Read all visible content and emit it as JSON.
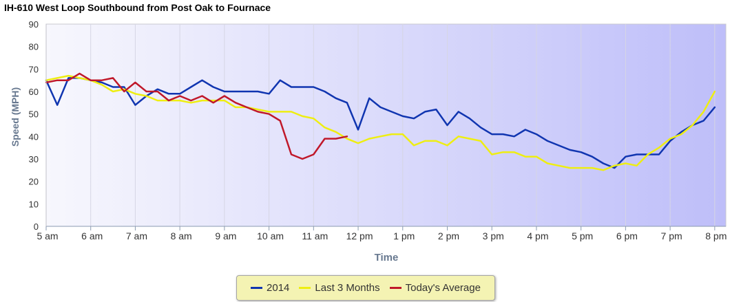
{
  "chart_data": {
    "type": "line",
    "title": "IH-610 West Loop Southbound from Post Oak to Fournace",
    "xlabel": "Time",
    "ylabel": "Speed (MPH)",
    "ylim": [
      0,
      90
    ],
    "yticks": [
      0,
      10,
      20,
      30,
      40,
      50,
      60,
      70,
      80,
      90
    ],
    "x_unit": "hours",
    "xlim": [
      5,
      20.25
    ],
    "x_ticks": [
      5,
      6,
      7,
      8,
      9,
      10,
      11,
      12,
      13,
      14,
      15,
      16,
      17,
      18,
      19,
      20
    ],
    "x_tick_labels": [
      "5 am",
      "6 am",
      "7 am",
      "8 am",
      "9 am",
      "10 am",
      "11 am",
      "12 pm",
      "1 pm",
      "2 pm",
      "3 pm",
      "4 pm",
      "5 pm",
      "6 pm",
      "7 pm",
      "8 pm"
    ],
    "grid": "vertical",
    "legend_position": "bottom",
    "series": [
      {
        "name": "2014",
        "color": "#1035b0",
        "points": [
          [
            5,
            65
          ],
          [
            5.25,
            54
          ],
          [
            5.5,
            66
          ],
          [
            5.75,
            66
          ],
          [
            6,
            65
          ],
          [
            6.25,
            64
          ],
          [
            6.5,
            62
          ],
          [
            6.75,
            62
          ],
          [
            7,
            54
          ],
          [
            7.25,
            58
          ],
          [
            7.5,
            61
          ],
          [
            7.75,
            59
          ],
          [
            8,
            59
          ],
          [
            8.25,
            62
          ],
          [
            8.5,
            65
          ],
          [
            8.75,
            62
          ],
          [
            9,
            60
          ],
          [
            9.25,
            60
          ],
          [
            9.5,
            60
          ],
          [
            9.75,
            60
          ],
          [
            10,
            59
          ],
          [
            10.25,
            65
          ],
          [
            10.5,
            62
          ],
          [
            10.75,
            62
          ],
          [
            11,
            62
          ],
          [
            11.25,
            60
          ],
          [
            11.5,
            57
          ],
          [
            11.75,
            55
          ],
          [
            12,
            43
          ],
          [
            12.25,
            57
          ],
          [
            12.5,
            53
          ],
          [
            12.75,
            51
          ],
          [
            13,
            49
          ],
          [
            13.25,
            48
          ],
          [
            13.5,
            51
          ],
          [
            13.75,
            52
          ],
          [
            14,
            45
          ],
          [
            14.25,
            51
          ],
          [
            14.5,
            48
          ],
          [
            14.75,
            44
          ],
          [
            15,
            41
          ],
          [
            15.25,
            41
          ],
          [
            15.5,
            40
          ],
          [
            15.75,
            43
          ],
          [
            16,
            41
          ],
          [
            16.25,
            38
          ],
          [
            16.5,
            36
          ],
          [
            16.75,
            34
          ],
          [
            17,
            33
          ],
          [
            17.25,
            31
          ],
          [
            17.5,
            28
          ],
          [
            17.75,
            26
          ],
          [
            18,
            31
          ],
          [
            18.25,
            32
          ],
          [
            18.5,
            32
          ],
          [
            18.75,
            32
          ],
          [
            19,
            38
          ],
          [
            19.25,
            42
          ],
          [
            19.5,
            45
          ],
          [
            19.75,
            47
          ],
          [
            20,
            53
          ]
        ]
      },
      {
        "name": "Last 3 Months",
        "color": "#eeee11",
        "points": [
          [
            5,
            65
          ],
          [
            5.25,
            66
          ],
          [
            5.5,
            67
          ],
          [
            5.75,
            66
          ],
          [
            6,
            65
          ],
          [
            6.25,
            63
          ],
          [
            6.5,
            60
          ],
          [
            6.75,
            61
          ],
          [
            7,
            59
          ],
          [
            7.25,
            58
          ],
          [
            7.5,
            56
          ],
          [
            7.75,
            56
          ],
          [
            8,
            56
          ],
          [
            8.25,
            55
          ],
          [
            8.5,
            56
          ],
          [
            8.75,
            56
          ],
          [
            9,
            56
          ],
          [
            9.25,
            53
          ],
          [
            9.5,
            53
          ],
          [
            9.75,
            52
          ],
          [
            10,
            51
          ],
          [
            10.25,
            51
          ],
          [
            10.5,
            51
          ],
          [
            10.75,
            49
          ],
          [
            11,
            48
          ],
          [
            11.25,
            44
          ],
          [
            11.5,
            42
          ],
          [
            11.75,
            39
          ],
          [
            12,
            37
          ],
          [
            12.25,
            39
          ],
          [
            12.5,
            40
          ],
          [
            12.75,
            41
          ],
          [
            13,
            41
          ],
          [
            13.25,
            36
          ],
          [
            13.5,
            38
          ],
          [
            13.75,
            38
          ],
          [
            14,
            36
          ],
          [
            14.25,
            40
          ],
          [
            14.5,
            39
          ],
          [
            14.75,
            38
          ],
          [
            15,
            32
          ],
          [
            15.25,
            33
          ],
          [
            15.5,
            33
          ],
          [
            15.75,
            31
          ],
          [
            16,
            31
          ],
          [
            16.25,
            28
          ],
          [
            16.5,
            27
          ],
          [
            16.75,
            26
          ],
          [
            17,
            26
          ],
          [
            17.25,
            26
          ],
          [
            17.5,
            25
          ],
          [
            17.75,
            27
          ],
          [
            18,
            28
          ],
          [
            18.25,
            27
          ],
          [
            18.5,
            32
          ],
          [
            18.75,
            35
          ],
          [
            19,
            39
          ],
          [
            19.25,
            41
          ],
          [
            19.5,
            45
          ],
          [
            19.75,
            51
          ],
          [
            20,
            60
          ]
        ]
      },
      {
        "name": "Today's Average",
        "color": "#c0182a",
        "points": [
          [
            5,
            64
          ],
          [
            5.25,
            65
          ],
          [
            5.5,
            65
          ],
          [
            5.75,
            68
          ],
          [
            6,
            65
          ],
          [
            6.25,
            65
          ],
          [
            6.5,
            66
          ],
          [
            6.75,
            60
          ],
          [
            7,
            64
          ],
          [
            7.25,
            60
          ],
          [
            7.5,
            60
          ],
          [
            7.75,
            56
          ],
          [
            8,
            58
          ],
          [
            8.25,
            56
          ],
          [
            8.5,
            58
          ],
          [
            8.75,
            55
          ],
          [
            9,
            58
          ],
          [
            9.25,
            55
          ],
          [
            9.5,
            53
          ],
          [
            9.75,
            51
          ],
          [
            10,
            50
          ],
          [
            10.25,
            47
          ],
          [
            10.5,
            32
          ],
          [
            10.75,
            30
          ],
          [
            11,
            32
          ],
          [
            11.25,
            39
          ],
          [
            11.5,
            39
          ],
          [
            11.75,
            40
          ]
        ]
      }
    ]
  }
}
